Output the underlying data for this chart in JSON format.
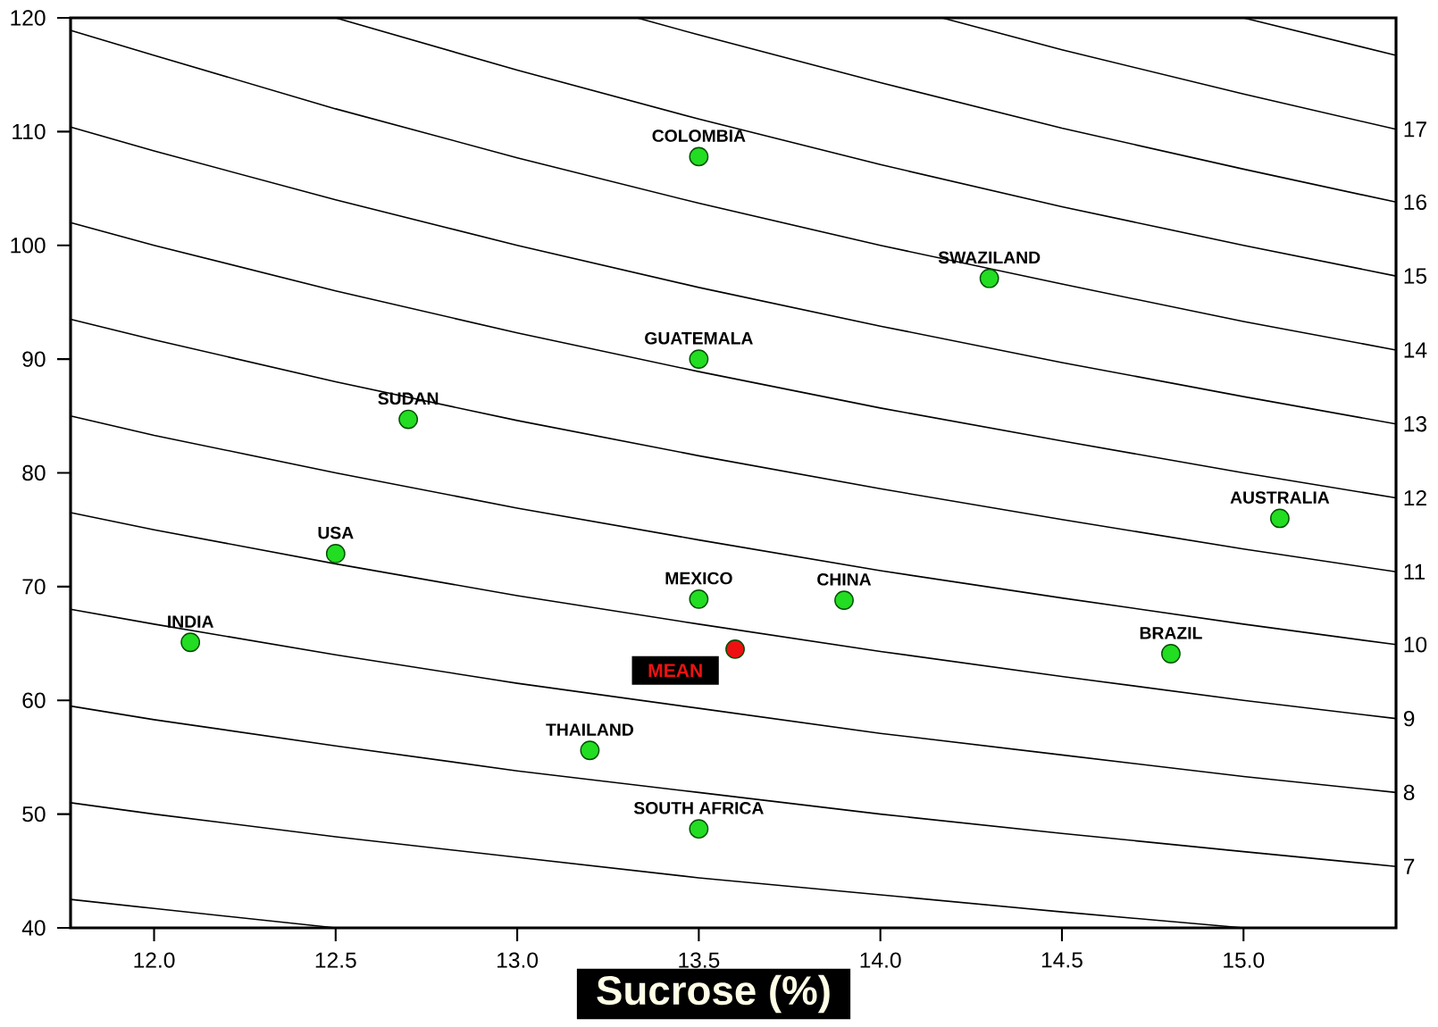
{
  "chart_data": {
    "type": "scatter",
    "xlabel": "Sucrose (%)",
    "xlim": [
      11.77,
      15.42
    ],
    "ylim": [
      40,
      120
    ],
    "xticks": [
      {
        "value": 12,
        "label": "12.0"
      },
      {
        "value": 12.5,
        "label": "12.5"
      },
      {
        "value": 13,
        "label": "13.0"
      },
      {
        "value": 13.5,
        "label": "13.5"
      },
      {
        "value": 14,
        "label": "14.0"
      },
      {
        "value": 14.5,
        "label": "14.5"
      },
      {
        "value": 15,
        "label": "15.0"
      }
    ],
    "yticks": [
      40,
      50,
      60,
      70,
      80,
      90,
      100,
      110,
      120
    ],
    "marker": "circle",
    "series": [
      {
        "type": "line",
        "marker": "none",
        "color": "#000000",
        "x": [
          11.77,
          12.0,
          12.5
        ],
        "values": [
          42.5,
          41.7,
          40.0
        ]
      },
      {
        "type": "line",
        "marker": "none",
        "color": "#000000",
        "x": [
          11.77,
          12.0,
          12.5,
          13.0,
          13.5,
          14.0,
          14.5,
          15.0
        ],
        "values": [
          51.0,
          50.0,
          48.0,
          46.2,
          44.4,
          42.9,
          41.4,
          40.0
        ]
      },
      {
        "type": "line",
        "marker": "none",
        "color": "#000000",
        "name": "7",
        "x": [
          11.77,
          12.0,
          12.5,
          13.0,
          13.5,
          14.0,
          14.5,
          15.0,
          15.42
        ],
        "values": [
          59.5,
          58.3,
          56.0,
          53.8,
          51.9,
          50.0,
          48.3,
          46.7,
          45.4
        ]
      },
      {
        "type": "line",
        "marker": "none",
        "color": "#000000",
        "name": "8",
        "x": [
          11.77,
          12.0,
          12.5,
          13.0,
          13.5,
          14.0,
          14.5,
          15.0,
          15.42
        ],
        "values": [
          68.0,
          66.7,
          64.0,
          61.5,
          59.3,
          57.1,
          55.2,
          53.3,
          51.9
        ]
      },
      {
        "type": "line",
        "marker": "none",
        "color": "#000000",
        "name": "9",
        "x": [
          11.77,
          12.0,
          12.5,
          13.0,
          13.5,
          14.0,
          14.5,
          15.0,
          15.42
        ],
        "values": [
          76.5,
          75.0,
          72.0,
          69.2,
          66.7,
          64.3,
          62.1,
          60.0,
          58.4
        ]
      },
      {
        "type": "line",
        "marker": "none",
        "color": "#000000",
        "name": "10",
        "x": [
          11.77,
          12.0,
          12.5,
          13.0,
          13.5,
          14.0,
          14.5,
          15.0,
          15.42
        ],
        "values": [
          85.0,
          83.3,
          80.0,
          76.9,
          74.1,
          71.4,
          69.0,
          66.7,
          64.9
        ]
      },
      {
        "type": "line",
        "marker": "none",
        "color": "#000000",
        "name": "11",
        "x": [
          11.77,
          12.0,
          12.5,
          13.0,
          13.5,
          14.0,
          14.5,
          15.0,
          15.42
        ],
        "values": [
          93.5,
          91.7,
          88.0,
          84.6,
          81.5,
          78.6,
          75.9,
          73.3,
          71.3
        ]
      },
      {
        "type": "line",
        "marker": "none",
        "color": "#000000",
        "name": "12",
        "x": [
          11.77,
          12.0,
          12.5,
          13.0,
          13.5,
          14.0,
          14.5,
          15.0,
          15.42
        ],
        "values": [
          102.0,
          100.0,
          96.0,
          92.3,
          88.9,
          85.7,
          82.8,
          80.0,
          77.8
        ]
      },
      {
        "type": "line",
        "marker": "none",
        "color": "#000000",
        "name": "13",
        "x": [
          11.77,
          12.0,
          12.5,
          13.0,
          13.5,
          14.0,
          14.5,
          15.0,
          15.42
        ],
        "values": [
          110.4,
          108.3,
          104.0,
          100.0,
          96.3,
          92.9,
          89.7,
          86.7,
          84.3
        ]
      },
      {
        "type": "line",
        "marker": "none",
        "color": "#000000",
        "name": "14",
        "x": [
          11.77,
          12.0,
          12.5,
          13.0,
          13.5,
          14.0,
          14.5,
          15.0,
          15.42
        ],
        "values": [
          118.9,
          116.7,
          112.0,
          107.7,
          103.7,
          100.0,
          96.6,
          93.3,
          90.8
        ]
      },
      {
        "type": "line",
        "marker": "none",
        "color": "#000000",
        "name": "15",
        "x": [
          12.5,
          13.0,
          13.5,
          14.0,
          14.5,
          15.0,
          15.42
        ],
        "values": [
          120.0,
          115.4,
          111.1,
          107.1,
          103.4,
          100.0,
          97.3
        ]
      },
      {
        "type": "line",
        "marker": "none",
        "color": "#000000",
        "name": "16",
        "x": [
          13.33,
          13.5,
          14.0,
          14.5,
          15.0,
          15.42
        ],
        "values": [
          120.0,
          118.5,
          114.3,
          110.3,
          106.7,
          103.8
        ]
      },
      {
        "type": "line",
        "marker": "none",
        "color": "#000000",
        "name": "17",
        "x": [
          14.17,
          14.5,
          15.0,
          15.42
        ],
        "values": [
          120.0,
          117.2,
          113.3,
          110.2
        ]
      },
      {
        "type": "line",
        "marker": "none",
        "color": "#000000",
        "x": [
          15.0,
          15.42
        ],
        "values": [
          120.0,
          116.7
        ]
      },
      {
        "color": "#22dd22",
        "x": [
          12.1,
          12.5,
          12.7,
          13.5,
          13.5,
          14.3,
          15.1,
          13.5,
          13.9,
          14.8,
          13.2,
          13.5
        ],
        "values": [
          65.1,
          72.9,
          84.7,
          107.8,
          90.0,
          97.1,
          76.0,
          68.9,
          68.8,
          64.1,
          55.6,
          48.7
        ]
      },
      {
        "color": "#ee1111",
        "name": "MEAN",
        "x": [
          13.6
        ],
        "values": [
          64.5
        ]
      }
    ],
    "annotations": [
      {
        "text": "INDIA",
        "x": 12.1,
        "y": 65.1
      },
      {
        "text": "USA",
        "x": 12.5,
        "y": 72.9
      },
      {
        "text": "SUDAN",
        "x": 12.7,
        "y": 84.7
      },
      {
        "text": "COLOMBIA",
        "x": 13.5,
        "y": 107.8
      },
      {
        "text": "GUATEMALA",
        "x": 13.5,
        "y": 90.0
      },
      {
        "text": "SWAZILAND",
        "x": 14.3,
        "y": 97.1
      },
      {
        "text": "AUSTRALIA",
        "x": 15.1,
        "y": 76.0
      },
      {
        "text": "MEXICO",
        "x": 13.5,
        "y": 68.9
      },
      {
        "text": "CHINA",
        "x": 13.9,
        "y": 68.8
      },
      {
        "text": "BRAZIL",
        "x": 14.8,
        "y": 64.1
      },
      {
        "text": "THAILAND",
        "x": 13.2,
        "y": 55.6
      },
      {
        "text": "SOUTH AFRICA",
        "x": 13.5,
        "y": 48.7
      }
    ]
  }
}
